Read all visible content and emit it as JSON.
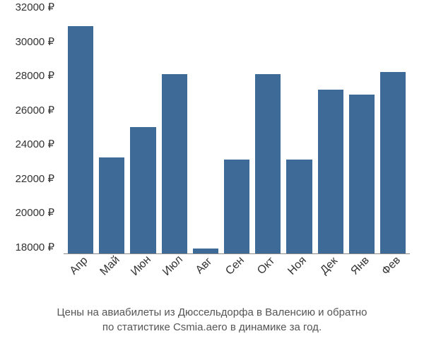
{
  "chart": {
    "type": "bar",
    "categories": [
      "Апр",
      "Май",
      "Июн",
      "Июл",
      "Авг",
      "Сен",
      "Окт",
      "Ноя",
      "Дек",
      "Янв",
      "Фев"
    ],
    "values": [
      31300,
      23600,
      25400,
      28500,
      18300,
      23500,
      28500,
      23500,
      27600,
      27300,
      28600
    ],
    "bar_color": "#3d6a96",
    "background_color": "#ffffff",
    "ylim": [
      18000,
      32000
    ],
    "ytick_step": 2000,
    "ytick_labels": [
      "18000 ₽",
      "20000 ₽",
      "22000 ₽",
      "24000 ₽",
      "26000 ₽",
      "28000 ₽",
      "30000 ₽",
      "32000 ₽"
    ],
    "ytick_values": [
      18000,
      20000,
      22000,
      24000,
      26000,
      28000,
      30000,
      32000
    ],
    "axis_fontsize": 15,
    "axis_color": "#333333",
    "xlabel_rotation": -45,
    "bar_gap": 8
  },
  "caption": {
    "line1": "Цены на авиабилеты из Дюссельдорфа в Валенсию и обратно",
    "line2": "по статистике Csmia.aero в динамике за год.",
    "fontsize": 15,
    "color": "#555555"
  }
}
